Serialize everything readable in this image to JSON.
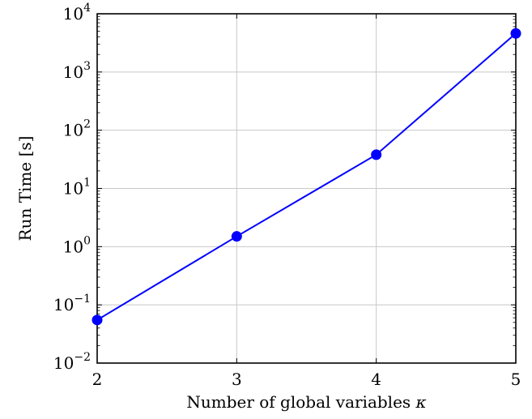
{
  "chart_data": {
    "type": "line",
    "title": "",
    "xlabel": "Number of global variables",
    "xlabel_symbol": "κ",
    "ylabel": "Run Time [s]",
    "x": [
      2,
      3,
      4,
      5
    ],
    "series": [
      {
        "values": [
          0.055,
          1.5,
          38,
          4600
        ],
        "color": "#0000ff"
      }
    ],
    "xlim": [
      2,
      5
    ],
    "ylim": [
      0.01,
      10000
    ],
    "yscale": "log",
    "xticks": [
      "2",
      "3",
      "4",
      "5"
    ],
    "yticks": [
      {
        "base": "10",
        "exp": "−2"
      },
      {
        "base": "10",
        "exp": "−1"
      },
      {
        "base": "10",
        "exp": "0"
      },
      {
        "base": "10",
        "exp": "1"
      },
      {
        "base": "10",
        "exp": "2"
      },
      {
        "base": "10",
        "exp": "3"
      },
      {
        "base": "10",
        "exp": "4"
      }
    ],
    "grid": true,
    "marker": "circle"
  }
}
